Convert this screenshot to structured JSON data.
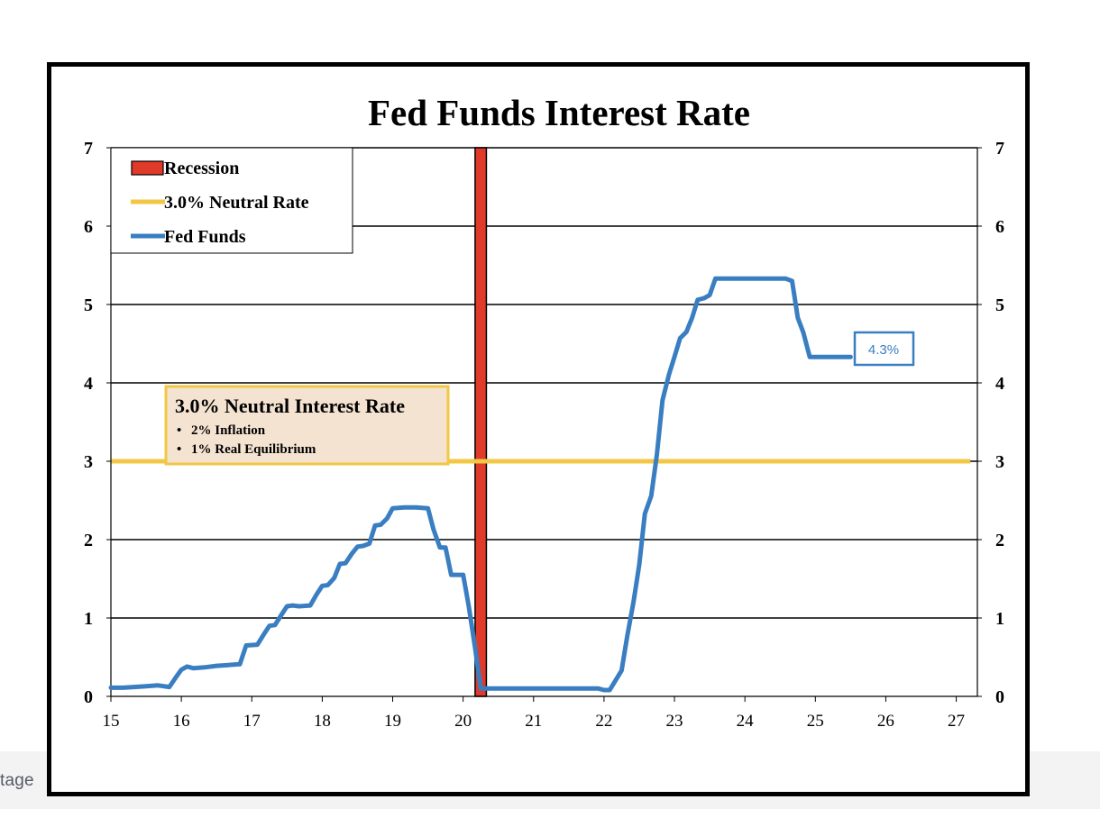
{
  "brand": {
    "text": "tage"
  },
  "chart_data": {
    "type": "line",
    "title": "Fed Funds Interest Rate",
    "xlabel": "",
    "ylabel": "",
    "xlim": [
      15,
      27.3
    ],
    "ylim": [
      0,
      7
    ],
    "x_ticks": [
      "15",
      "16",
      "17",
      "18",
      "19",
      "20",
      "21",
      "22",
      "23",
      "24",
      "25",
      "26",
      "27"
    ],
    "y_ticks": [
      "0",
      "1",
      "2",
      "3",
      "4",
      "5",
      "6",
      "7"
    ],
    "grid": true,
    "legend_position": "top-left",
    "legend": [
      {
        "label": "Recession",
        "kind": "bar",
        "color": "#e03a2a"
      },
      {
        "label": "3.0% Neutral Rate",
        "kind": "line",
        "color": "#f2c744"
      },
      {
        "label": "Fed Funds",
        "kind": "line",
        "color": "#3a7ec2"
      }
    ],
    "recession": {
      "x_start": 20.17,
      "x_end": 20.33,
      "color": "#e03a2a"
    },
    "neutral_rate": {
      "value": 3.0,
      "x_start": 15,
      "x_end": 27.2,
      "color": "#f2c744"
    },
    "annotation_box": {
      "title": "3.0% Neutral Interest Rate",
      "bullets": [
        "2% Inflation",
        "1% Real Equilibrium"
      ]
    },
    "end_label": "4.3%",
    "series": [
      {
        "name": "Fed Funds",
        "color": "#3a7ec2",
        "points": [
          [
            15.0,
            0.11
          ],
          [
            15.17,
            0.11
          ],
          [
            15.33,
            0.12
          ],
          [
            15.5,
            0.13
          ],
          [
            15.67,
            0.14
          ],
          [
            15.83,
            0.12
          ],
          [
            15.92,
            0.24
          ],
          [
            16.0,
            0.34
          ],
          [
            16.08,
            0.38
          ],
          [
            16.17,
            0.36
          ],
          [
            16.33,
            0.37
          ],
          [
            16.5,
            0.39
          ],
          [
            16.67,
            0.4
          ],
          [
            16.83,
            0.41
          ],
          [
            16.92,
            0.65
          ],
          [
            17.08,
            0.66
          ],
          [
            17.17,
            0.79
          ],
          [
            17.25,
            0.9
          ],
          [
            17.33,
            0.91
          ],
          [
            17.42,
            1.04
          ],
          [
            17.5,
            1.15
          ],
          [
            17.58,
            1.16
          ],
          [
            17.67,
            1.15
          ],
          [
            17.83,
            1.16
          ],
          [
            17.92,
            1.3
          ],
          [
            18.0,
            1.41
          ],
          [
            18.08,
            1.42
          ],
          [
            18.17,
            1.51
          ],
          [
            18.25,
            1.69
          ],
          [
            18.33,
            1.7
          ],
          [
            18.42,
            1.82
          ],
          [
            18.5,
            1.91
          ],
          [
            18.58,
            1.92
          ],
          [
            18.67,
            1.95
          ],
          [
            18.75,
            2.18
          ],
          [
            18.83,
            2.19
          ],
          [
            18.92,
            2.27
          ],
          [
            19.0,
            2.4
          ],
          [
            19.17,
            2.41
          ],
          [
            19.33,
            2.41
          ],
          [
            19.5,
            2.4
          ],
          [
            19.58,
            2.13
          ],
          [
            19.67,
            1.9
          ],
          [
            19.75,
            1.9
          ],
          [
            19.83,
            1.55
          ],
          [
            20.0,
            1.55
          ],
          [
            20.08,
            1.15
          ],
          [
            20.17,
            0.62
          ],
          [
            20.25,
            0.1
          ],
          [
            20.33,
            0.1
          ],
          [
            20.5,
            0.1
          ],
          [
            20.67,
            0.1
          ],
          [
            20.83,
            0.1
          ],
          [
            21.0,
            0.1
          ],
          [
            21.25,
            0.1
          ],
          [
            21.5,
            0.1
          ],
          [
            21.75,
            0.1
          ],
          [
            21.92,
            0.1
          ],
          [
            22.0,
            0.08
          ],
          [
            22.08,
            0.08
          ],
          [
            22.25,
            0.33
          ],
          [
            22.33,
            0.77
          ],
          [
            22.42,
            1.21
          ],
          [
            22.5,
            1.68
          ],
          [
            22.58,
            2.33
          ],
          [
            22.67,
            2.56
          ],
          [
            22.75,
            3.08
          ],
          [
            22.83,
            3.78
          ],
          [
            22.92,
            4.1
          ],
          [
            23.0,
            4.33
          ],
          [
            23.08,
            4.57
          ],
          [
            23.17,
            4.65
          ],
          [
            23.25,
            4.83
          ],
          [
            23.33,
            5.06
          ],
          [
            23.42,
            5.08
          ],
          [
            23.5,
            5.12
          ],
          [
            23.58,
            5.33
          ],
          [
            24.0,
            5.33
          ],
          [
            24.5,
            5.33
          ],
          [
            24.58,
            5.33
          ],
          [
            24.67,
            5.3
          ],
          [
            24.75,
            4.83
          ],
          [
            24.83,
            4.64
          ],
          [
            24.92,
            4.33
          ],
          [
            25.17,
            4.33
          ],
          [
            25.5,
            4.33
          ]
        ]
      }
    ]
  }
}
